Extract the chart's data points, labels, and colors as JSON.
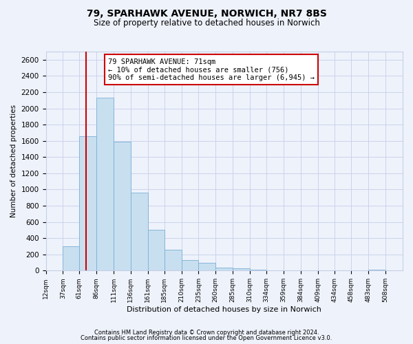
{
  "title": "79, SPARHAWK AVENUE, NORWICH, NR7 8BS",
  "subtitle": "Size of property relative to detached houses in Norwich",
  "xlabel": "Distribution of detached houses by size in Norwich",
  "ylabel": "Number of detached properties",
  "bar_left_edges": [
    12,
    37,
    61,
    86,
    111,
    136,
    161,
    185,
    210,
    235,
    260,
    285,
    310,
    334,
    359,
    384,
    409,
    434,
    458,
    483
  ],
  "bar_widths": [
    25,
    24,
    25,
    25,
    25,
    25,
    24,
    25,
    25,
    25,
    25,
    25,
    24,
    25,
    25,
    25,
    25,
    24,
    25,
    25
  ],
  "bar_heights": [
    0,
    300,
    1660,
    2130,
    1590,
    960,
    505,
    255,
    130,
    100,
    35,
    30,
    10,
    5,
    5,
    3,
    2,
    1,
    2,
    15
  ],
  "bar_color": "#c8dff0",
  "bar_edge_color": "#7bafd4",
  "tick_labels": [
    "12sqm",
    "37sqm",
    "61sqm",
    "86sqm",
    "111sqm",
    "136sqm",
    "161sqm",
    "185sqm",
    "210sqm",
    "235sqm",
    "260sqm",
    "285sqm",
    "310sqm",
    "334sqm",
    "359sqm",
    "384sqm",
    "409sqm",
    "434sqm",
    "458sqm",
    "483sqm",
    "508sqm"
  ],
  "tick_positions": [
    12,
    37,
    61,
    86,
    111,
    136,
    161,
    185,
    210,
    235,
    260,
    285,
    310,
    334,
    359,
    384,
    409,
    434,
    458,
    483,
    508
  ],
  "ylim": [
    0,
    2700
  ],
  "xlim": [
    12,
    533
  ],
  "yticks": [
    0,
    200,
    400,
    600,
    800,
    1000,
    1200,
    1400,
    1600,
    1800,
    2000,
    2200,
    2400,
    2600
  ],
  "property_line_x": 71,
  "property_line_color": "#cc0000",
  "annotation_box_text": "79 SPARHAWK AVENUE: 71sqm\n← 10% of detached houses are smaller (756)\n90% of semi-detached houses are larger (6,945) →",
  "footer_line1": "Contains HM Land Registry data © Crown copyright and database right 2024.",
  "footer_line2": "Contains public sector information licensed under the Open Government Licence v3.0.",
  "background_color": "#eef2fb",
  "grid_color": "#c5cfe8"
}
